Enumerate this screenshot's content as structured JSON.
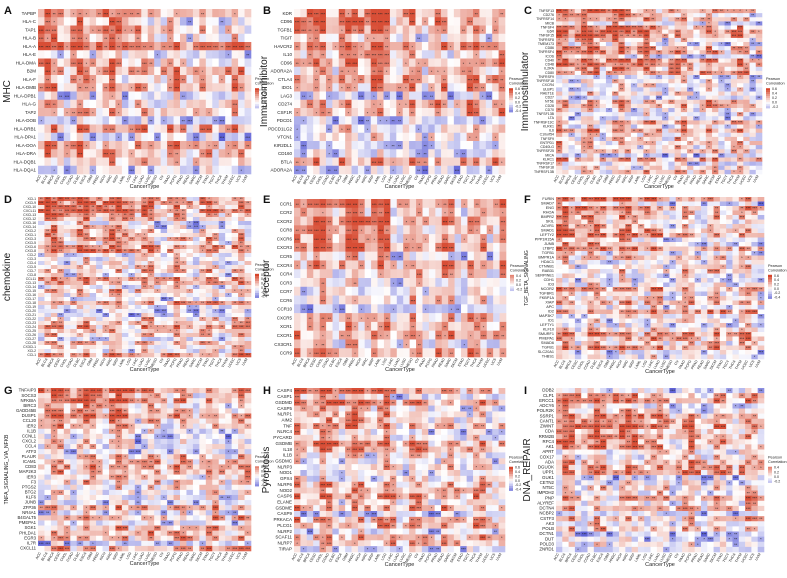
{
  "chart_data": [
    {
      "type": "heatmap",
      "panel_letter": "A",
      "ylabel": "MHC",
      "xlabel": "CancerType",
      "legend_title": "Pearson\nCorrelation",
      "legend_ticks": [
        "0.6",
        "0.4",
        "0.2",
        "0.0",
        "-0.2"
      ],
      "rows": [
        "TAPBP",
        "HLA-C",
        "TAP1",
        "HLA-B",
        "HLA-A",
        "HLA-E",
        "HLA-DMA",
        "B2M",
        "HLA-F",
        "HLA-DMB",
        "HLA-DPB1",
        "HLA-G",
        "TAP2",
        "HLA-DOB",
        "HLA-DRB1",
        "HLA-DPA1",
        "HLA-DOA",
        "HLA-DRA",
        "HLA-DQB1",
        "HLA-DQA1"
      ]
    },
    {
      "type": "heatmap",
      "panel_letter": "B",
      "ylabel": "Immunoinhibitor",
      "xlabel": "CancerType",
      "legend_title": "Pearson\nCorrelation",
      "legend_ticks": [
        "0.6",
        "0.4",
        "0.2",
        "0.0",
        "-0.2",
        "-0.4"
      ],
      "rows": [
        "KDR",
        "CD96",
        "TGFB1",
        "TIGIT",
        "HAVCR2",
        "IL10",
        "CD96",
        "ADORA2A",
        "CTLA4",
        "IDO1",
        "LAG3",
        "CD274",
        "CSF1R",
        "PDCD1",
        "PDCD1LG2",
        "VTCN1",
        "KIR2DL1",
        "CD160",
        "BTLA",
        "ADORA2A"
      ]
    },
    {
      "type": "heatmap",
      "panel_letter": "C",
      "ylabel": "Immunostimulator",
      "xlabel": "CancerType",
      "legend_title": "Pearson\nCorrelation",
      "legend_ticks": [
        "0.6",
        "0.4",
        "0.2",
        "0.0",
        "-0.2"
      ],
      "rows": [
        "TNFSF13",
        "CD276",
        "TNFRSF14",
        "MICB",
        "TNFSF4",
        "IL6R",
        "TNFSF15",
        "TNFRSF8",
        "TMEM173",
        "CD86",
        "TNFRSF4",
        "ICOS",
        "CD40",
        "CD48",
        "IL2RA",
        "CD80",
        "TNFRSF9",
        "TNFRSF18",
        "CXCR4",
        "ULBP1",
        "RAET1E",
        "CD27",
        "NT5E",
        "CD28",
        "CD70",
        "TNFSF13B",
        "LTA",
        "TNFRSF13C",
        "KLRK1",
        "IL6",
        "C10orf54",
        "TNFSF9",
        "ENTPD1",
        "CD40LG",
        "TNFRSF25",
        "MICA",
        "KLRC1",
        "TNFRSF17",
        "TNFSF18",
        "TNFRSF13B"
      ]
    },
    {
      "type": "heatmap",
      "panel_letter": "D",
      "ylabel": "chemokine",
      "xlabel": "CancerType",
      "legend_title": "Pearson\nCorrelation",
      "legend_ticks": [
        "0.6",
        "0.4",
        "0.2",
        "0.0",
        "-0.2",
        "-0.4"
      ],
      "rows": [
        "XCL1",
        "CXCL9",
        "CXCL10",
        "CXCL11",
        "CXCL13",
        "CXCL12",
        "CXCL16",
        "CXCL14",
        "CXCL2",
        "CXCL1",
        "CXCL3",
        "CXCL5",
        "CXCL6",
        "CXCL8",
        "CCL2",
        "CCL3",
        "CCL4",
        "CCL5",
        "CCL7",
        "CCL8",
        "CCL11",
        "CCL13",
        "CCL14",
        "CCL15",
        "CCL16",
        "CCL17",
        "CCL18",
        "CCL19",
        "CCL20",
        "CCL21",
        "CCL22",
        "CCL23",
        "CCL24",
        "CCL25",
        "CCL26",
        "CCL27",
        "CCL28",
        "CX3CL1",
        "XCL2",
        "CCL1"
      ]
    },
    {
      "type": "heatmap",
      "panel_letter": "E",
      "ylabel": "receptor",
      "xlabel": "CancerType",
      "legend_title": "Pearson\nCorrelation",
      "legend_ticks": [
        "0.4",
        "0.2",
        "0.0",
        "-0.2"
      ],
      "rows": [
        "CCR1",
        "CCR2",
        "CXCR2",
        "CCR8",
        "CXCR6",
        "CXCR3",
        "CCR5",
        "CXCR4",
        "CCR4",
        "CCR3",
        "CCR7",
        "CCR6",
        "CCR10",
        "CXCR5",
        "XCR1",
        "CXCR1",
        "CX3CR1",
        "CCR9"
      ]
    },
    {
      "type": "heatmap",
      "panel_letter": "F",
      "ylabel": "TGF_BETA_SIGNALING",
      "xlabel": "CancerType",
      "legend_title": "Pearson\nCorrelation",
      "legend_ticks": [
        "0.6",
        "0.4",
        "0.2",
        "0.0",
        "-0.2",
        "-0.4"
      ],
      "rows": [
        "FURIN",
        "SMAD7",
        "ENG",
        "RHOA",
        "BMPR2",
        "SKIL",
        "ACVR1",
        "SMAD1",
        "LEFTY2",
        "PPP1R15A",
        "JUNB",
        "LTBP2",
        "TGFB1",
        "BMPR1A",
        "HDAC1",
        "CTNNB1",
        "RAB31",
        "SERPINE1",
        "CDH1",
        "ID3",
        "NCOR2",
        "TGFBR1",
        "FKBP1A",
        "XIAP",
        "APC",
        "ID2",
        "MAP3K7",
        "ID1",
        "LEFTY1",
        "KLF10",
        "SMURF1",
        "PMEPA1",
        "SMAD6",
        "TGFB1",
        "SLC20A1",
        "THBS1"
      ]
    },
    {
      "type": "heatmap",
      "panel_letter": "G",
      "ylabel": "TNFA_SIGNALING_VIA_NFKB",
      "xlabel": "CancerType",
      "legend_title": "Pearson\nCorrelation",
      "legend_ticks": [
        "0.4",
        "0.2",
        "0.0",
        "-0.2",
        "-0.4"
      ],
      "rows": [
        "TNFAIP3",
        "SOCS3",
        "NFKBIA",
        "BIRC3",
        "GADD45B",
        "DUSP1",
        "CCL20",
        "IER2",
        "IL1B",
        "CCNL1",
        "CXCL2",
        "CCL4",
        "ATF3",
        "PLAUR",
        "ICAM1",
        "CD83",
        "MAP2K3",
        "IER3",
        "F3",
        "PTGS2",
        "BTG2",
        "KLF6",
        "JUNB",
        "ZFP36",
        "NR4A1",
        "B4GALT5",
        "PMEPA1",
        "SGK1",
        "PHLDA1",
        "EGR3",
        "IL7R",
        "CXCL11"
      ]
    },
    {
      "type": "heatmap",
      "panel_letter": "H",
      "ylabel": "Pyroptosis",
      "xlabel": "CancerType",
      "legend_title": "Pearson\nCorrelation",
      "legend_ticks": [
        "0.6",
        "0.4",
        "0.2",
        "0.0",
        "-0.2",
        "-0.4"
      ],
      "rows": [
        "CASP4",
        "CASP1",
        "GSDMD",
        "CASP5",
        "NLRP1",
        "AIM2",
        "TNF",
        "NLRC4",
        "PYCARD",
        "GSDMB",
        "IL18",
        "IL1B",
        "GSDMC",
        "NLRP3",
        "NOD1",
        "GPX4",
        "NLRP6",
        "NOD2",
        "CASP6",
        "ELANE",
        "GSDME",
        "CASP9",
        "PRKACA",
        "PLCG1",
        "NLRP2",
        "SCAF11",
        "NLRP7",
        "TIRAP"
      ]
    },
    {
      "type": "heatmap",
      "panel_letter": "I",
      "ylabel": "DNA_REPAIR",
      "xlabel": "CancerType",
      "legend_title": "Pearson\nCorrelation",
      "legend_ticks": [
        "0.4",
        "0.2",
        "0.0",
        "-0.2"
      ],
      "rows": [
        "DDB2",
        "CLP1",
        "ERCC1",
        "ADCY6",
        "POLR2K",
        "SSRP1",
        "CANT1",
        "ZWINT",
        "CDA",
        "RRM2B",
        "RFC4",
        "AK1",
        "APRT",
        "COX17",
        "ADA",
        "DGUOK",
        "UPP1",
        "GUK1",
        "CETN2",
        "NT5C",
        "IMPDH2",
        "PNP",
        "ALYREF",
        "DCTN4",
        "NCBP2",
        "CSTF3",
        "AK3",
        "POLB",
        "DCTN1",
        "DUT",
        "POLD3",
        "ZNRD1"
      ]
    }
  ],
  "cancer_types": [
    "ACC",
    "BLCA",
    "BRCA",
    "CESC",
    "CHOL",
    "COAD",
    "DLBC",
    "ESCA",
    "GBM",
    "HNSC",
    "KICH",
    "KIRC",
    "KIRP",
    "LAML",
    "LGG",
    "LIHC",
    "LUAD",
    "LUSC",
    "MESO",
    "OV",
    "PAAD",
    "PCPG",
    "PRAD",
    "READ",
    "SARC",
    "SKCM",
    "STAD",
    "TGCT",
    "THCA",
    "THYM",
    "UCEC",
    "UCS",
    "UVM"
  ],
  "colors": {
    "max_positive": "#d6452b",
    "neutral": "#ffffff",
    "max_negative": "#4b4fd2"
  }
}
